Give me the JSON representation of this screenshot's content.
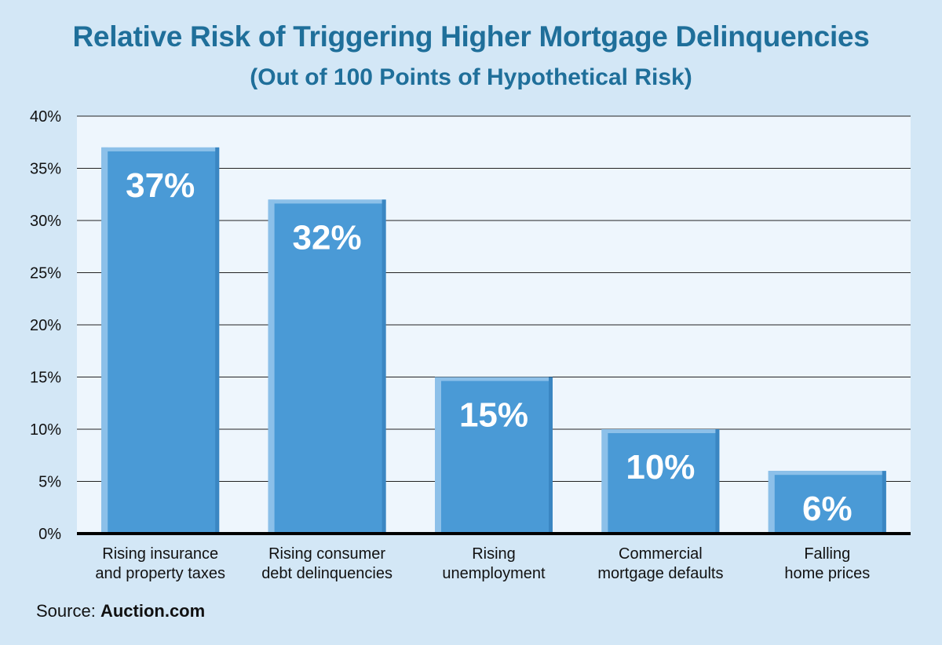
{
  "colors": {
    "background": "#d3e7f6",
    "plot_background": "#eef6fd",
    "bar": "#4a9ad6",
    "bar_highlight": "#8cc0e9",
    "title": "#1f6f9a"
  },
  "source": {
    "prefix": "Source:",
    "name": "Auction.com"
  },
  "chart_data": {
    "type": "bar",
    "title": "Relative Risk of Triggering Higher Mortgage Delinquencies",
    "subtitle": "(Out of 100 Points of Hypothetical Risk)",
    "categories": [
      [
        "Rising insurance",
        "and property taxes"
      ],
      [
        "Rising consumer",
        "debt delinquencies"
      ],
      [
        "Rising",
        "unemployment"
      ],
      [
        "Commercial",
        "mortgage defaults"
      ],
      [
        "Falling",
        "home prices"
      ]
    ],
    "values": [
      37,
      32,
      15,
      10,
      6
    ],
    "data_labels": [
      "37%",
      "32%",
      "15%",
      "10%",
      "6%"
    ],
    "yticks": [
      "0%",
      "5%",
      "10%",
      "15%",
      "20%",
      "25%",
      "30%",
      "35%",
      "40%"
    ],
    "ylim": [
      0,
      40
    ],
    "grid": true,
    "xlabel": "",
    "ylabel": ""
  }
}
